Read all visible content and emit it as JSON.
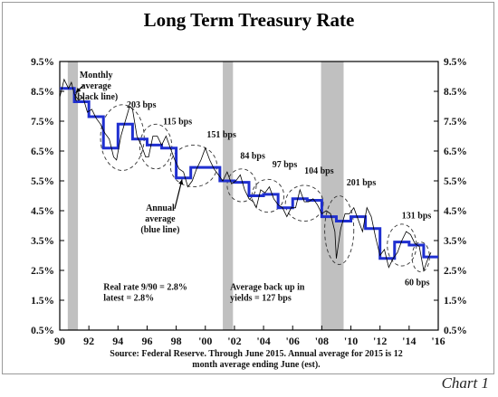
{
  "chart_data": {
    "type": "line",
    "title": "Long Term Treasury Rate",
    "footer_label": "Chart 1",
    "source_lines": [
      "Source: Federal Reserve. Through June 2015. Annual average for 2015 is 12",
      "month average ending June (est)."
    ],
    "ylim": [
      0.5,
      9.5
    ],
    "xlim": [
      1990,
      2016
    ],
    "y_ticks": [
      0.5,
      1.5,
      2.5,
      3.5,
      4.5,
      5.5,
      6.5,
      7.5,
      8.5,
      9.5
    ],
    "y_tick_labels": [
      "0.5%",
      "1.5%",
      "2.5%",
      "3.5%",
      "4.5%",
      "5.5%",
      "6.5%",
      "7.5%",
      "8.5%",
      "9.5%"
    ],
    "x_ticks": [
      1990,
      1992,
      1994,
      1996,
      1998,
      2000,
      2002,
      2004,
      2006,
      2008,
      2010,
      2012,
      2014,
      2016
    ],
    "x_tick_labels": [
      "90",
      "92",
      "94",
      "96",
      "98",
      "'00",
      "'02",
      "'04",
      "'06",
      "'08",
      "'10",
      "'12",
      "'14",
      "'16"
    ],
    "recessions": [
      [
        1990.55,
        1991.25
      ],
      [
        2001.2,
        2001.9
      ],
      [
        2007.95,
        2009.5
      ]
    ],
    "recession_color": "#c0c0c0",
    "series": [
      {
        "name": "Annual average (blue line)",
        "color": "#1f2fd0",
        "step": true,
        "x": [
          1990,
          1991,
          1992,
          1993,
          1994,
          1995,
          1996,
          1997,
          1998,
          1999,
          2000,
          2001,
          2002,
          2003,
          2004,
          2005,
          2006,
          2007,
          2008,
          2009,
          2010,
          2011,
          2012,
          2013,
          2014,
          2015
        ],
        "values": [
          8.6,
          8.15,
          7.65,
          6.6,
          7.4,
          6.9,
          6.7,
          6.6,
          5.6,
          5.95,
          5.95,
          5.5,
          5.45,
          5.0,
          5.05,
          4.6,
          4.9,
          4.85,
          4.3,
          4.15,
          4.3,
          3.9,
          2.9,
          3.45,
          3.35,
          2.95
        ]
      },
      {
        "name": "Monthly average (black line)",
        "color": "#000000",
        "step": false,
        "x": [
          1990.0,
          1990.3,
          1990.6,
          1990.8,
          1991.0,
          1991.3,
          1991.6,
          1991.9,
          1992.2,
          1992.5,
          1992.8,
          1993.1,
          1993.4,
          1993.7,
          1993.9,
          1994.2,
          1994.5,
          1994.8,
          1995.0,
          1995.3,
          1995.6,
          1995.9,
          1996.1,
          1996.4,
          1996.7,
          1997.0,
          1997.3,
          1997.6,
          1997.9,
          1998.2,
          1998.5,
          1998.8,
          1999.1,
          1999.4,
          1999.7,
          2000.0,
          2000.3,
          2000.6,
          2000.9,
          2001.2,
          2001.5,
          2001.8,
          2002.1,
          2002.4,
          2002.7,
          2003.0,
          2003.3,
          2003.5,
          2003.8,
          2004.1,
          2004.4,
          2004.7,
          2005.0,
          2005.3,
          2005.6,
          2005.9,
          2006.2,
          2006.5,
          2006.8,
          2007.1,
          2007.4,
          2007.7,
          2008.0,
          2008.3,
          2008.6,
          2008.9,
          2009.0,
          2009.3,
          2009.6,
          2009.9,
          2010.2,
          2010.5,
          2010.8,
          2011.1,
          2011.4,
          2011.7,
          2012.0,
          2012.3,
          2012.6,
          2012.9,
          2013.2,
          2013.5,
          2013.8,
          2014.1,
          2014.4,
          2014.7,
          2015.0,
          2015.3,
          2015.5
        ],
        "values": [
          8.3,
          8.9,
          8.6,
          8.8,
          8.4,
          8.2,
          8.3,
          7.8,
          7.9,
          7.6,
          7.4,
          7.1,
          6.9,
          6.3,
          6.2,
          7.0,
          7.5,
          8.0,
          7.9,
          7.0,
          6.7,
          6.3,
          6.3,
          7.0,
          7.0,
          6.7,
          7.0,
          6.6,
          6.2,
          5.9,
          5.8,
          5.3,
          5.5,
          5.9,
          6.2,
          6.6,
          6.2,
          5.9,
          5.7,
          5.5,
          5.8,
          5.4,
          5.5,
          5.7,
          5.2,
          4.9,
          4.8,
          4.6,
          5.2,
          5.1,
          5.3,
          4.9,
          4.7,
          4.6,
          4.3,
          4.6,
          4.6,
          5.2,
          4.8,
          4.8,
          4.9,
          4.7,
          4.4,
          4.5,
          4.4,
          3.8,
          2.9,
          3.9,
          4.4,
          4.4,
          4.6,
          4.2,
          3.8,
          4.6,
          4.3,
          3.6,
          3.0,
          3.2,
          2.6,
          2.9,
          3.1,
          3.5,
          3.8,
          3.7,
          3.4,
          3.3,
          2.5,
          2.9,
          3.1
        ]
      }
    ],
    "annotations": [
      {
        "lines": [
          "Monthly",
          "average",
          "(black line)"
        ],
        "x": 1992.5,
        "y": 8.95,
        "arrow_to": [
          1991.1,
          8.45
        ]
      },
      {
        "lines": [
          "Annual",
          "average",
          "(blue line)"
        ],
        "x": 1996.9,
        "y": 4.5,
        "arrow_to": [
          1998.4,
          5.55
        ]
      },
      {
        "lines": [
          "203 bps"
        ],
        "x": 1994.6,
        "y": 7.95
      },
      {
        "lines": [
          "115 bps"
        ],
        "x": 1997.1,
        "y": 7.4
      },
      {
        "lines": [
          "151 bps"
        ],
        "x": 2000.1,
        "y": 6.95
      },
      {
        "lines": [
          "84 bps"
        ],
        "x": 2002.4,
        "y": 6.25
      },
      {
        "lines": [
          "97 bps"
        ],
        "x": 2004.6,
        "y": 5.95
      },
      {
        "lines": [
          "104 bps"
        ],
        "x": 2006.8,
        "y": 5.75
      },
      {
        "lines": [
          "201 bps"
        ],
        "x": 2009.7,
        "y": 5.35
      },
      {
        "lines": [
          "131 bps"
        ],
        "x": 2013.5,
        "y": 4.25
      },
      {
        "lines": [
          "60 bps"
        ],
        "x": 2013.7,
        "y": 2.0
      },
      {
        "lines": [
          "Real rate 9/90 = 2.8%",
          "latest = 2.8%"
        ],
        "x": 1993.0,
        "y": 1.85
      },
      {
        "lines": [
          "Average back up in",
          "yields = 127 bps"
        ],
        "x": 2001.7,
        "y": 1.85
      }
    ],
    "ellipses": [
      {
        "cx": 1994.3,
        "cy": 6.95,
        "rx": 1.5,
        "ry": 1.1
      },
      {
        "cx": 1996.6,
        "cy": 6.65,
        "rx": 1.1,
        "ry": 0.75
      },
      {
        "cx": 1999.2,
        "cy": 6.0,
        "rx": 1.6,
        "ry": 0.7
      },
      {
        "cx": 2002.5,
        "cy": 5.35,
        "rx": 1.0,
        "ry": 0.55
      },
      {
        "cx": 2004.3,
        "cy": 5.0,
        "rx": 1.1,
        "ry": 0.55
      },
      {
        "cx": 2006.8,
        "cy": 4.75,
        "rx": 1.3,
        "ry": 0.6
      },
      {
        "cx": 2009.2,
        "cy": 3.85,
        "rx": 1.0,
        "ry": 1.15
      },
      {
        "cx": 2013.5,
        "cy": 3.35,
        "rx": 1.0,
        "ry": 0.7
      },
      {
        "cx": 2014.8,
        "cy": 2.95,
        "rx": 0.6,
        "ry": 0.5
      }
    ]
  }
}
